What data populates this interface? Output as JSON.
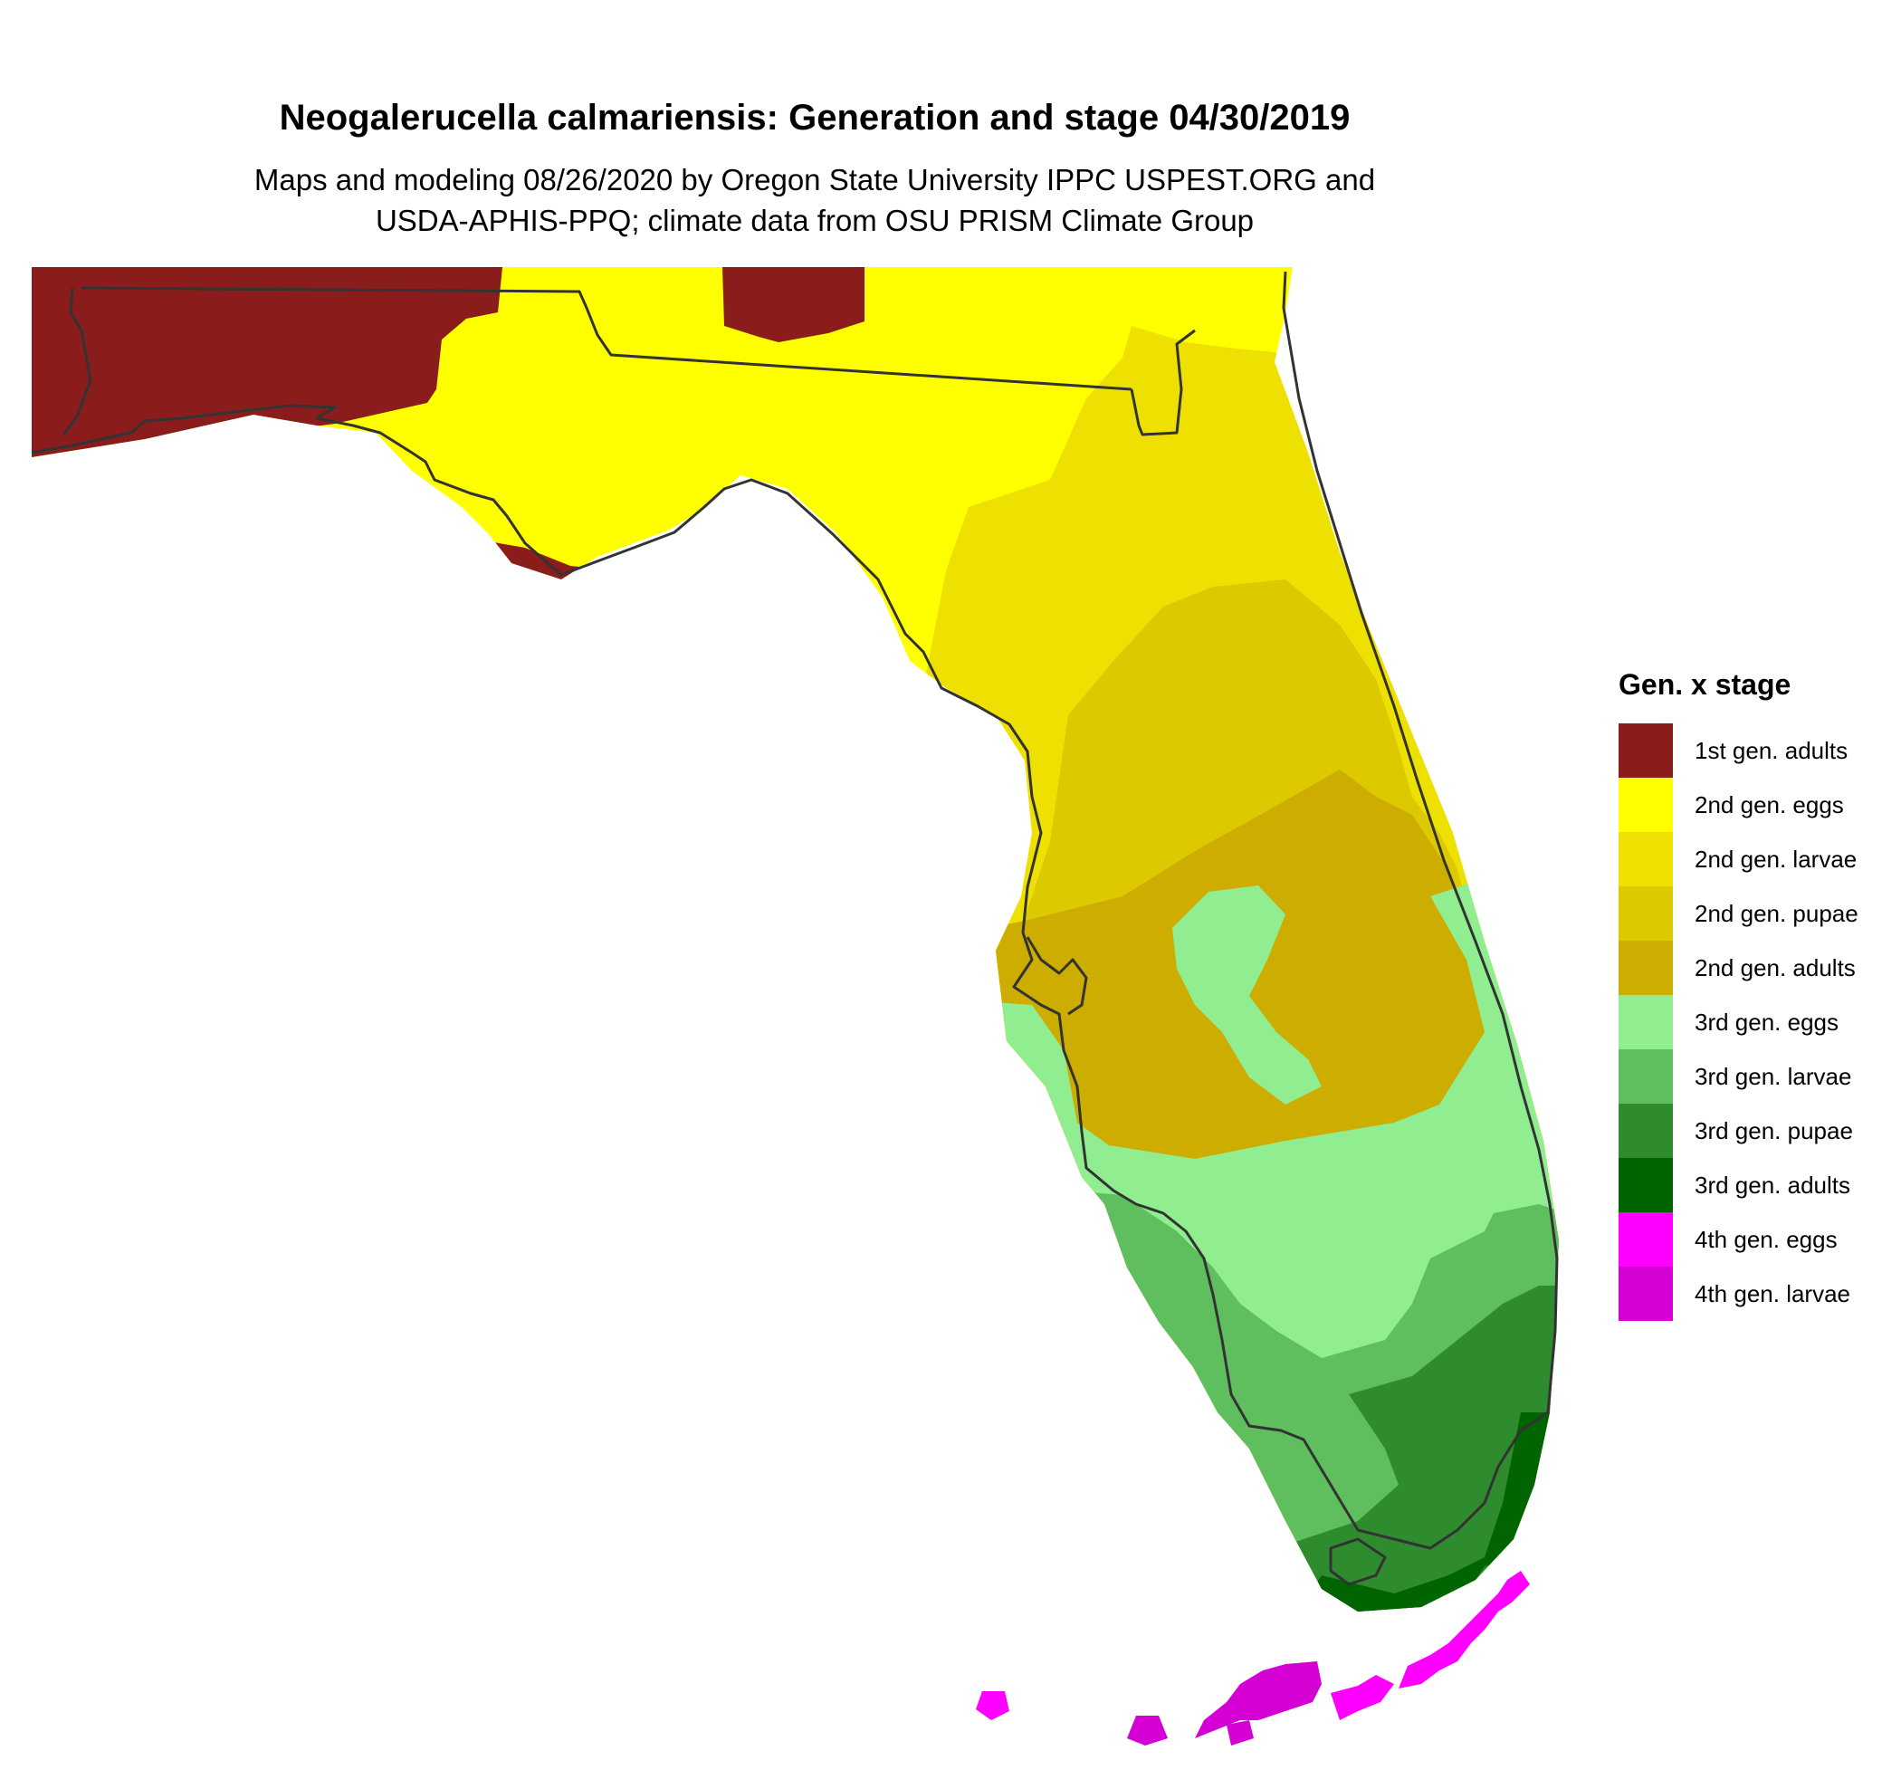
{
  "header": {
    "title": "Neogalerucella calmariensis: Generation and stage 04/30/2019",
    "subtitle_line1": "Maps and modeling 08/26/2020 by Oregon State University IPPC USPEST.ORG and",
    "subtitle_line2": "USDA-APHIS-PPQ; climate data from OSU PRISM Climate Group"
  },
  "legend": {
    "title": "Gen. x stage",
    "items": [
      {
        "label": "1st gen. adults",
        "color": "#8b1c1c"
      },
      {
        "label": "2nd gen. eggs",
        "color": "#ffff00"
      },
      {
        "label": "2nd gen. larvae",
        "color": "#eee000"
      },
      {
        "label": "2nd gen. pupae",
        "color": "#ddc900"
      },
      {
        "label": "2nd gen. adults",
        "color": "#ccad00"
      },
      {
        "label": "3rd gen. eggs",
        "color": "#90ee90"
      },
      {
        "label": "3rd gen. larvae",
        "color": "#5fbf5f"
      },
      {
        "label": "3rd gen. pupae",
        "color": "#2e8b2e"
      },
      {
        "label": "3rd gen. adults",
        "color": "#006400"
      },
      {
        "label": "4th gen. eggs",
        "color": "#ff00ff"
      },
      {
        "label": "4th gen. larvae",
        "color": "#d400d4"
      }
    ]
  }
}
